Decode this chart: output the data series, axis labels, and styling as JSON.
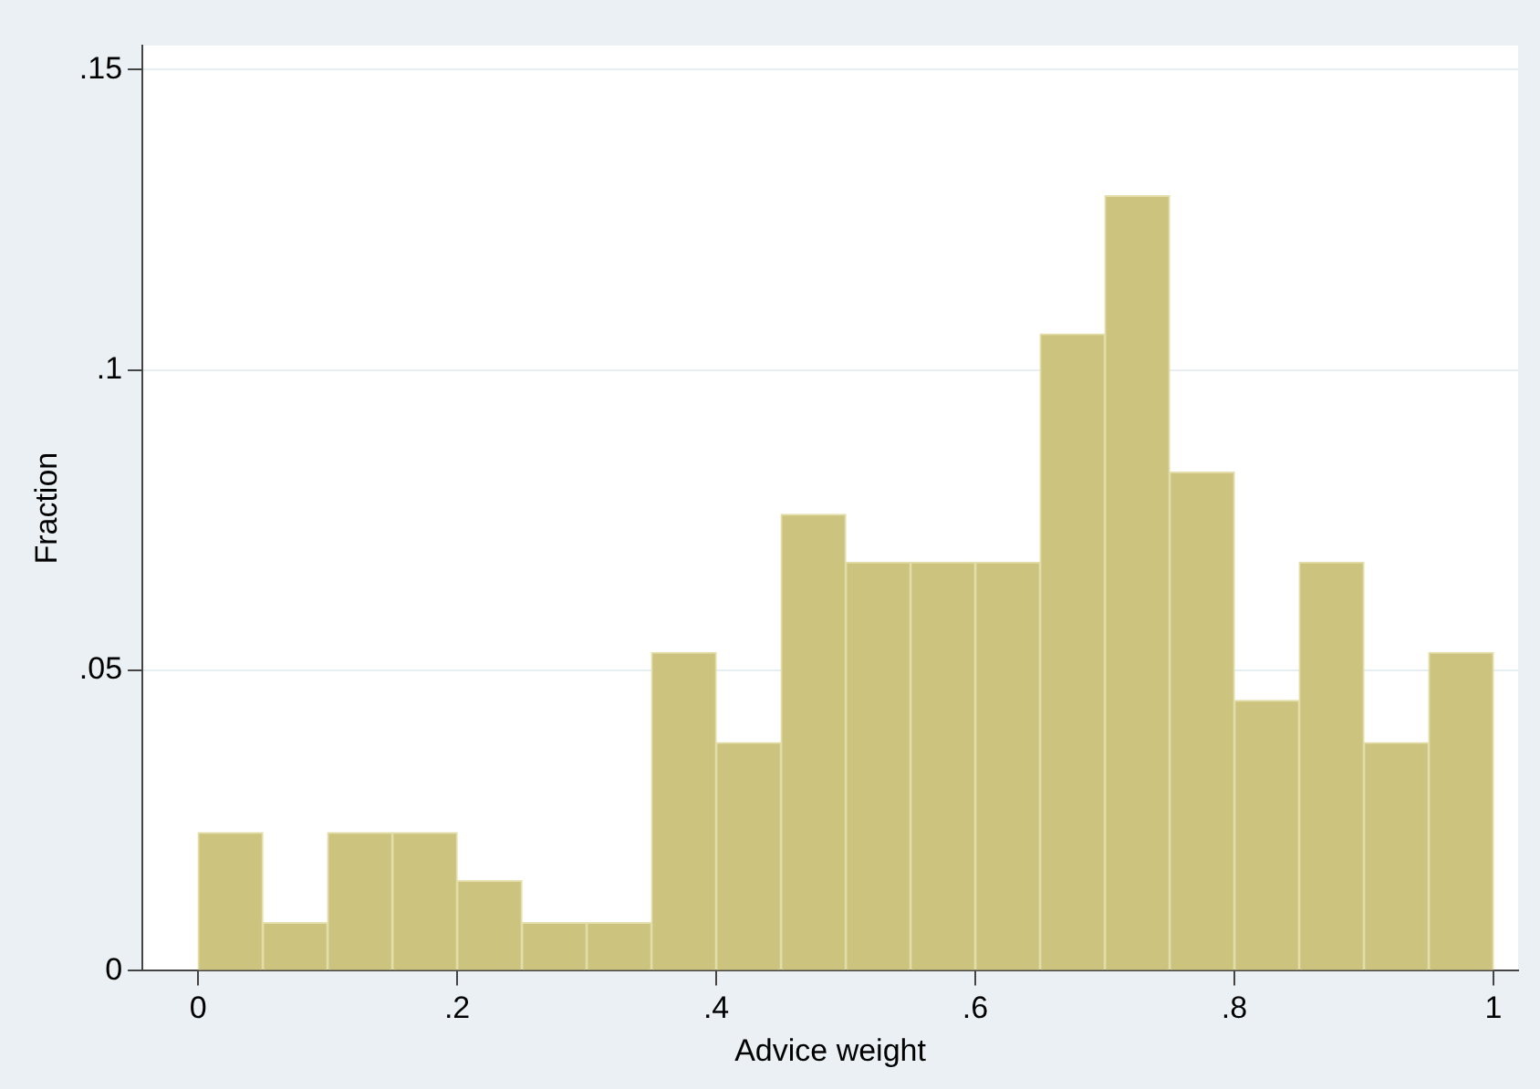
{
  "chart_data": {
    "type": "histogram",
    "xlabel": "Advice weight",
    "ylabel": "Fraction",
    "bins": [
      0,
      0.05,
      0.1,
      0.15,
      0.2,
      0.25,
      0.3,
      0.35,
      0.4,
      0.45,
      0.5,
      0.55,
      0.6,
      0.65,
      0.7,
      0.75,
      0.8,
      0.85,
      0.9,
      0.95,
      1
    ],
    "values": [
      0.023,
      0.008,
      0.023,
      0.023,
      0.015,
      0.008,
      0.008,
      0.053,
      0.038,
      0.076,
      0.068,
      0.068,
      0.068,
      0.106,
      0.129,
      0.083,
      0.045,
      0.068,
      0.038,
      0.053
    ],
    "color": "#cbc37e",
    "xlim": [
      -0.043,
      1.019
    ],
    "xticks": [
      0,
      {
        "value": 0.2,
        "label": ".2"
      },
      {
        "value": 0.4,
        "label": ".4"
      },
      {
        "value": 0.6,
        "label": ".6"
      },
      {
        "value": 0.8,
        "label": ".8"
      },
      1
    ],
    "ylim": [
      0,
      0.154
    ],
    "yticks": [
      0,
      {
        "value": 0.05,
        "label": ".05"
      },
      {
        "value": 0.1,
        "label": ".1"
      },
      {
        "value": 0.15,
        "label": ".15"
      }
    ],
    "grid": "y",
    "legend": false
  }
}
